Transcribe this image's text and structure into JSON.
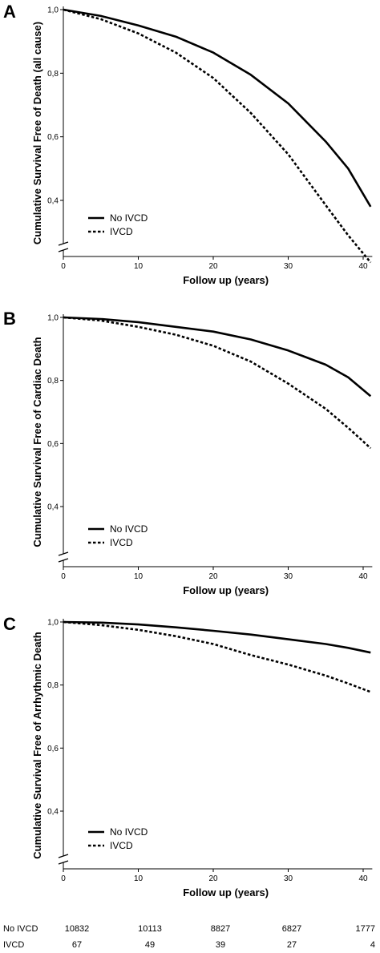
{
  "chart_data": [
    {
      "type": "line",
      "panel_label": "A",
      "xlabel": "Follow up (years)",
      "ylabel": "Cumulative Survival Free of Death (all cause)",
      "xlim": [
        0,
        41
      ],
      "ylim": [
        0.2,
        1.0
      ],
      "y_axis_break": true,
      "xticks": [
        "0",
        "10",
        "20",
        "30",
        "40"
      ],
      "yticks": [
        "1,0",
        "0,8",
        "0,6",
        "0,4"
      ],
      "legend": {
        "placement": "bottom-left",
        "entries": [
          "No IVCD",
          "IVCD"
        ]
      },
      "series": [
        {
          "name": "No IVCD",
          "style": "solid",
          "x": [
            0,
            5,
            10,
            15,
            20,
            25,
            30,
            35,
            38,
            41
          ],
          "y": [
            1.0,
            0.98,
            0.95,
            0.915,
            0.865,
            0.795,
            0.705,
            0.585,
            0.5,
            0.38
          ]
        },
        {
          "name": "IVCD",
          "style": "dashed",
          "x": [
            0,
            5,
            10,
            15,
            20,
            25,
            30,
            35,
            38,
            41
          ],
          "y": [
            1.0,
            0.97,
            0.925,
            0.865,
            0.785,
            0.675,
            0.545,
            0.385,
            0.29,
            0.205
          ]
        }
      ]
    },
    {
      "type": "line",
      "panel_label": "B",
      "xlabel": "Follow up (years)",
      "ylabel": "Cumulative Survival Free of Cardiac Death",
      "xlim": [
        0,
        41
      ],
      "ylim": [
        0.2,
        1.0
      ],
      "y_axis_break": true,
      "xticks": [
        "0",
        "10",
        "20",
        "30",
        "40"
      ],
      "yticks": [
        "1,0",
        "0,8",
        "0,6",
        "0,4"
      ],
      "legend": {
        "placement": "bottom-left",
        "entries": [
          "No IVCD",
          "IVCD"
        ]
      },
      "series": [
        {
          "name": "No IVCD",
          "style": "solid",
          "x": [
            0,
            5,
            10,
            15,
            20,
            25,
            30,
            35,
            38,
            41
          ],
          "y": [
            1.0,
            0.995,
            0.985,
            0.97,
            0.955,
            0.93,
            0.895,
            0.85,
            0.81,
            0.75
          ]
        },
        {
          "name": "IVCD",
          "style": "dashed",
          "x": [
            0,
            5,
            10,
            15,
            20,
            25,
            30,
            35,
            38,
            41
          ],
          "y": [
            1.0,
            0.99,
            0.97,
            0.945,
            0.91,
            0.86,
            0.79,
            0.71,
            0.65,
            0.585
          ]
        }
      ]
    },
    {
      "type": "line",
      "panel_label": "C",
      "xlabel": "Follow up (years)",
      "ylabel": "Cumulative Survival Free of Arrhythmic Death",
      "xlim": [
        0,
        41
      ],
      "ylim": [
        0.2,
        1.0
      ],
      "y_axis_break": true,
      "xticks": [
        "0",
        "10",
        "20",
        "30",
        "40"
      ],
      "yticks": [
        "1,0",
        "0,8",
        "0,6",
        "0,4"
      ],
      "legend": {
        "placement": "bottom-left",
        "entries": [
          "No IVCD",
          "IVCD"
        ]
      },
      "series": [
        {
          "name": "No IVCD",
          "style": "solid",
          "x": [
            0,
            5,
            10,
            15,
            20,
            25,
            30,
            35,
            38,
            41
          ],
          "y": [
            1.0,
            0.998,
            0.992,
            0.983,
            0.972,
            0.96,
            0.945,
            0.93,
            0.918,
            0.903
          ]
        },
        {
          "name": "IVCD",
          "style": "dashed",
          "x": [
            0,
            5,
            10,
            15,
            20,
            25,
            30,
            35,
            38,
            41
          ],
          "y": [
            1.0,
            0.99,
            0.975,
            0.955,
            0.93,
            0.895,
            0.865,
            0.83,
            0.805,
            0.778
          ]
        }
      ]
    }
  ],
  "risk_table": {
    "rows": [
      {
        "label": "No IVCD",
        "values": [
          "10832",
          "10113",
          "8827",
          "6827",
          "1777"
        ]
      },
      {
        "label": "IVCD",
        "values": [
          "67",
          "49",
          "39",
          "27",
          "4"
        ]
      }
    ]
  }
}
